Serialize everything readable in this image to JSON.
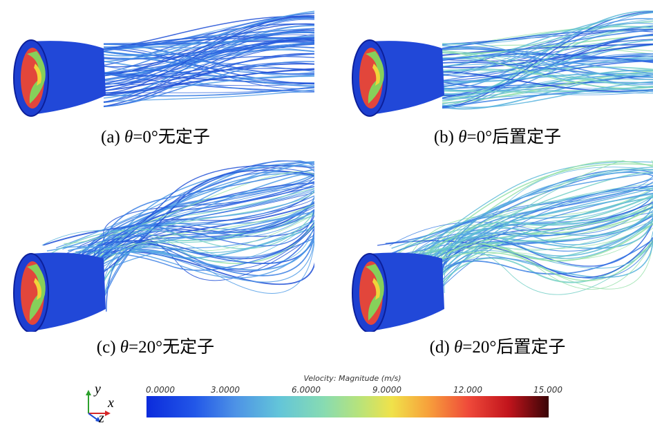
{
  "captions": {
    "a": {
      "prefix": "(a) ",
      "theta": "θ",
      "rest": "=0°无定子"
    },
    "b": {
      "prefix": "(b) ",
      "theta": "θ",
      "rest": "=0°后置定子"
    },
    "c": {
      "prefix": "(c) ",
      "theta": "θ",
      "rest": "=20°无定子"
    },
    "d": {
      "prefix": "(d) ",
      "theta": "θ",
      "rest": "=20°后置定子"
    }
  },
  "colorbar": {
    "title": "Velocity: Magnitude (m/s)",
    "ticks": [
      "0.0000",
      "3.0000",
      "6.0000",
      "9.0000",
      "12.000",
      "15.000"
    ],
    "colors": [
      "#0b2bdc",
      "#4d92e6",
      "#87dbb2",
      "#f0e24a",
      "#ef4a3a",
      "#3a0507"
    ]
  },
  "axes": {
    "y": "y",
    "x": "x",
    "z": "z"
  }
}
